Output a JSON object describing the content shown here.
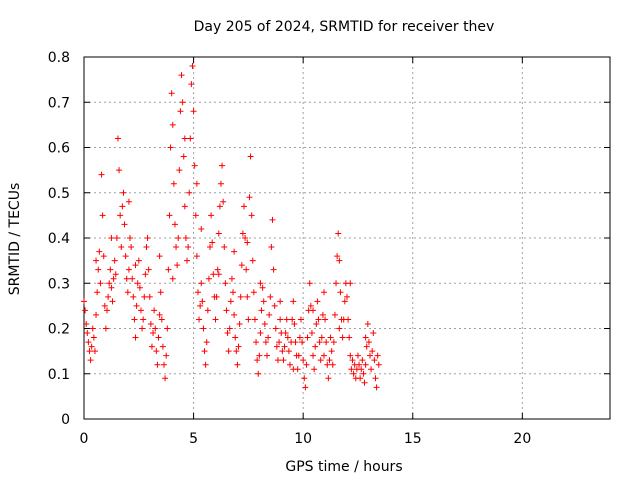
{
  "chart_data": {
    "type": "scatter",
    "title": "Day 205 of 2024, SRMTID for receiver thev",
    "xlabel": "GPS time / hours",
    "ylabel": "SRMTID / TECUs",
    "xlim": [
      0,
      24
    ],
    "ylim": [
      0,
      0.8
    ],
    "xticks": [
      0,
      5,
      10,
      15,
      20
    ],
    "yticks": [
      0,
      0.1,
      0.2,
      0.3,
      0.4,
      0.5,
      0.6,
      0.7,
      0.8
    ],
    "xtick_labels": [
      "0",
      "5",
      "10",
      "15",
      "20"
    ],
    "ytick_labels": [
      "0",
      "0.1",
      "0.2",
      "0.3",
      "0.4",
      "0.5",
      "0.6",
      "0.7",
      "0.8"
    ],
    "grid": true,
    "marker": "+",
    "color": "#ff0000",
    "series": [
      {
        "name": "thev",
        "points": [
          [
            0.0,
            0.26
          ],
          [
            0.05,
            0.24
          ],
          [
            0.1,
            0.21
          ],
          [
            0.15,
            0.19
          ],
          [
            0.2,
            0.17
          ],
          [
            0.25,
            0.15
          ],
          [
            0.3,
            0.13
          ],
          [
            0.35,
            0.16
          ],
          [
            0.4,
            0.2
          ],
          [
            0.45,
            0.18
          ],
          [
            0.5,
            0.15
          ],
          [
            0.55,
            0.23
          ],
          [
            0.6,
            0.28
          ],
          [
            0.65,
            0.33
          ],
          [
            0.7,
            0.37
          ],
          [
            0.75,
            0.3
          ],
          [
            0.8,
            0.54
          ],
          [
            0.85,
            0.45
          ],
          [
            0.9,
            0.36
          ],
          [
            0.95,
            0.25
          ],
          [
            1.0,
            0.2
          ],
          [
            1.05,
            0.24
          ],
          [
            1.1,
            0.27
          ],
          [
            1.15,
            0.3
          ],
          [
            1.2,
            0.33
          ],
          [
            1.25,
            0.29
          ],
          [
            1.3,
            0.26
          ],
          [
            1.35,
            0.31
          ],
          [
            1.4,
            0.35
          ],
          [
            1.45,
            0.32
          ],
          [
            1.5,
            0.4
          ],
          [
            1.55,
            0.62
          ],
          [
            1.6,
            0.55
          ],
          [
            1.65,
            0.45
          ],
          [
            1.7,
            0.38
          ],
          [
            1.75,
            0.47
          ],
          [
            1.8,
            0.5
          ],
          [
            1.85,
            0.43
          ],
          [
            1.9,
            0.36
          ],
          [
            1.95,
            0.31
          ],
          [
            2.0,
            0.28
          ],
          [
            2.05,
            0.33
          ],
          [
            2.1,
            0.4
          ],
          [
            2.15,
            0.38
          ],
          [
            2.2,
            0.31
          ],
          [
            2.25,
            0.27
          ],
          [
            2.3,
            0.22
          ],
          [
            2.35,
            0.18
          ],
          [
            2.4,
            0.25
          ],
          [
            2.45,
            0.3
          ],
          [
            2.5,
            0.35
          ],
          [
            2.55,
            0.29
          ],
          [
            2.6,
            0.24
          ],
          [
            2.65,
            0.2
          ],
          [
            2.7,
            0.22
          ],
          [
            2.75,
            0.27
          ],
          [
            2.8,
            0.32
          ],
          [
            2.85,
            0.38
          ],
          [
            2.9,
            0.4
          ],
          [
            2.95,
            0.33
          ],
          [
            3.0,
            0.27
          ],
          [
            3.05,
            0.21
          ],
          [
            3.1,
            0.16
          ],
          [
            3.15,
            0.19
          ],
          [
            3.2,
            0.24
          ],
          [
            3.25,
            0.2
          ],
          [
            3.3,
            0.15
          ],
          [
            3.35,
            0.12
          ],
          [
            3.4,
            0.18
          ],
          [
            3.45,
            0.23
          ],
          [
            3.5,
            0.28
          ],
          [
            3.55,
            0.22
          ],
          [
            3.6,
            0.16
          ],
          [
            3.65,
            0.12
          ],
          [
            3.7,
            0.09
          ],
          [
            3.75,
            0.14
          ],
          [
            3.8,
            0.2
          ],
          [
            3.85,
            0.33
          ],
          [
            3.9,
            0.45
          ],
          [
            3.95,
            0.6
          ],
          [
            4.0,
            0.72
          ],
          [
            4.05,
            0.65
          ],
          [
            4.1,
            0.52
          ],
          [
            4.15,
            0.43
          ],
          [
            4.2,
            0.38
          ],
          [
            4.25,
            0.34
          ],
          [
            4.3,
            0.4
          ],
          [
            4.35,
            0.55
          ],
          [
            4.4,
            0.68
          ],
          [
            4.45,
            0.76
          ],
          [
            4.5,
            0.7
          ],
          [
            4.55,
            0.58
          ],
          [
            4.6,
            0.47
          ],
          [
            4.65,
            0.4
          ],
          [
            4.7,
            0.35
          ],
          [
            4.75,
            0.38
          ],
          [
            4.8,
            0.5
          ],
          [
            4.85,
            0.62
          ],
          [
            4.9,
            0.74
          ],
          [
            4.95,
            0.78
          ],
          [
            5.0,
            0.68
          ],
          [
            5.05,
            0.56
          ],
          [
            5.1,
            0.45
          ],
          [
            5.15,
            0.36
          ],
          [
            5.2,
            0.28
          ],
          [
            5.25,
            0.22
          ],
          [
            5.3,
            0.25
          ],
          [
            5.35,
            0.3
          ],
          [
            5.4,
            0.26
          ],
          [
            5.45,
            0.2
          ],
          [
            5.5,
            0.15
          ],
          [
            5.55,
            0.12
          ],
          [
            5.6,
            0.17
          ],
          [
            5.65,
            0.24
          ],
          [
            5.7,
            0.31
          ],
          [
            5.75,
            0.38
          ],
          [
            5.8,
            0.45
          ],
          [
            5.85,
            0.39
          ],
          [
            5.9,
            0.32
          ],
          [
            5.95,
            0.27
          ],
          [
            6.0,
            0.22
          ],
          [
            6.05,
            0.27
          ],
          [
            6.1,
            0.33
          ],
          [
            6.15,
            0.41
          ],
          [
            6.2,
            0.47
          ],
          [
            6.25,
            0.52
          ],
          [
            6.3,
            0.56
          ],
          [
            6.35,
            0.48
          ],
          [
            6.4,
            0.38
          ],
          [
            6.45,
            0.3
          ],
          [
            6.5,
            0.24
          ],
          [
            6.55,
            0.19
          ],
          [
            6.6,
            0.15
          ],
          [
            6.65,
            0.2
          ],
          [
            6.7,
            0.26
          ],
          [
            6.75,
            0.31
          ],
          [
            6.8,
            0.28
          ],
          [
            6.85,
            0.23
          ],
          [
            6.9,
            0.18
          ],
          [
            6.95,
            0.15
          ],
          [
            7.0,
            0.12
          ],
          [
            7.05,
            0.16
          ],
          [
            7.1,
            0.21
          ],
          [
            7.15,
            0.27
          ],
          [
            7.2,
            0.34
          ],
          [
            7.25,
            0.41
          ],
          [
            7.3,
            0.47
          ],
          [
            7.35,
            0.4
          ],
          [
            7.4,
            0.33
          ],
          [
            7.45,
            0.27
          ],
          [
            7.5,
            0.22
          ],
          [
            7.55,
            0.49
          ],
          [
            7.6,
            0.58
          ],
          [
            7.65,
            0.45
          ],
          [
            7.7,
            0.35
          ],
          [
            7.75,
            0.28
          ],
          [
            7.8,
            0.22
          ],
          [
            7.85,
            0.17
          ],
          [
            7.9,
            0.13
          ],
          [
            7.95,
            0.1
          ],
          [
            8.0,
            0.14
          ],
          [
            8.05,
            0.19
          ],
          [
            8.1,
            0.24
          ],
          [
            8.15,
            0.29
          ],
          [
            8.2,
            0.26
          ],
          [
            8.25,
            0.21
          ],
          [
            8.3,
            0.17
          ],
          [
            8.35,
            0.14
          ],
          [
            8.4,
            0.18
          ],
          [
            8.45,
            0.23
          ],
          [
            8.5,
            0.27
          ],
          [
            8.55,
            0.38
          ],
          [
            8.6,
            0.44
          ],
          [
            8.65,
            0.33
          ],
          [
            8.7,
            0.25
          ],
          [
            8.75,
            0.2
          ],
          [
            8.8,
            0.16
          ],
          [
            8.85,
            0.13
          ],
          [
            8.9,
            0.17
          ],
          [
            8.95,
            0.22
          ],
          [
            9.0,
            0.19
          ],
          [
            9.05,
            0.15
          ],
          [
            9.1,
            0.13
          ],
          [
            9.15,
            0.16
          ],
          [
            9.2,
            0.19
          ],
          [
            9.25,
            0.22
          ],
          [
            9.3,
            0.18
          ],
          [
            9.35,
            0.15
          ],
          [
            9.4,
            0.12
          ],
          [
            9.45,
            0.17
          ],
          [
            9.5,
            0.22
          ],
          [
            9.55,
            0.26
          ],
          [
            9.6,
            0.21
          ],
          [
            9.65,
            0.17
          ],
          [
            9.7,
            0.14
          ],
          [
            9.75,
            0.11
          ],
          [
            9.8,
            0.14
          ],
          [
            9.85,
            0.18
          ],
          [
            9.9,
            0.22
          ],
          [
            9.95,
            0.17
          ],
          [
            10.0,
            0.13
          ],
          [
            10.05,
            0.09
          ],
          [
            10.1,
            0.07
          ],
          [
            10.15,
            0.12
          ],
          [
            10.2,
            0.18
          ],
          [
            10.25,
            0.24
          ],
          [
            10.3,
            0.3
          ],
          [
            10.35,
            0.25
          ],
          [
            10.4,
            0.19
          ],
          [
            10.45,
            0.14
          ],
          [
            10.5,
            0.11
          ],
          [
            10.55,
            0.16
          ],
          [
            10.6,
            0.21
          ],
          [
            10.65,
            0.26
          ],
          [
            10.7,
            0.22
          ],
          [
            10.75,
            0.17
          ],
          [
            10.8,
            0.13
          ],
          [
            10.85,
            0.18
          ],
          [
            10.9,
            0.23
          ],
          [
            10.95,
            0.28
          ],
          [
            11.0,
            0.22
          ],
          [
            11.05,
            0.17
          ],
          [
            11.1,
            0.12
          ],
          [
            11.15,
            0.09
          ],
          [
            11.2,
            0.13
          ],
          [
            11.25,
            0.18
          ],
          [
            11.3,
            0.15
          ],
          [
            11.35,
            0.12
          ],
          [
            11.4,
            0.17
          ],
          [
            11.45,
            0.23
          ],
          [
            11.5,
            0.3
          ],
          [
            11.55,
            0.36
          ],
          [
            11.6,
            0.41
          ],
          [
            11.65,
            0.35
          ],
          [
            11.7,
            0.28
          ],
          [
            11.75,
            0.22
          ],
          [
            11.8,
            0.18
          ],
          [
            11.85,
            0.22
          ],
          [
            11.9,
            0.26
          ],
          [
            11.95,
            0.3
          ],
          [
            12.0,
            0.27
          ],
          [
            12.05,
            0.22
          ],
          [
            12.1,
            0.18
          ],
          [
            12.15,
            0.14
          ],
          [
            12.2,
            0.11
          ],
          [
            12.25,
            0.13
          ],
          [
            12.3,
            0.1
          ],
          [
            12.35,
            0.12
          ],
          [
            12.4,
            0.09
          ],
          [
            12.45,
            0.11
          ],
          [
            12.5,
            0.14
          ],
          [
            12.55,
            0.12
          ],
          [
            12.6,
            0.09
          ],
          [
            12.65,
            0.11
          ],
          [
            12.7,
            0.13
          ],
          [
            12.75,
            0.1
          ],
          [
            12.8,
            0.08
          ],
          [
            12.85,
            0.12
          ],
          [
            12.9,
            0.16
          ],
          [
            12.95,
            0.21
          ],
          [
            13.0,
            0.17
          ],
          [
            13.05,
            0.14
          ],
          [
            13.1,
            0.11
          ],
          [
            13.15,
            0.15
          ],
          [
            13.2,
            0.19
          ],
          [
            13.25,
            0.13
          ],
          [
            13.3,
            0.09
          ],
          [
            13.35,
            0.07
          ],
          [
            13.4,
            0.14
          ],
          [
            13.45,
            0.12
          ],
          [
            0.55,
            0.35
          ],
          [
            1.25,
            0.4
          ],
          [
            2.05,
            0.48
          ],
          [
            2.35,
            0.34
          ],
          [
            3.45,
            0.36
          ],
          [
            4.05,
            0.31
          ],
          [
            4.6,
            0.62
          ],
          [
            5.15,
            0.52
          ],
          [
            5.35,
            0.42
          ],
          [
            6.15,
            0.32
          ],
          [
            6.85,
            0.37
          ],
          [
            7.45,
            0.39
          ],
          [
            8.05,
            0.3
          ],
          [
            8.95,
            0.26
          ],
          [
            9.55,
            0.11
          ],
          [
            10.45,
            0.24
          ],
          [
            10.95,
            0.14
          ],
          [
            11.65,
            0.2
          ],
          [
            12.15,
            0.3
          ],
          [
            12.85,
            0.18
          ]
        ]
      }
    ]
  }
}
